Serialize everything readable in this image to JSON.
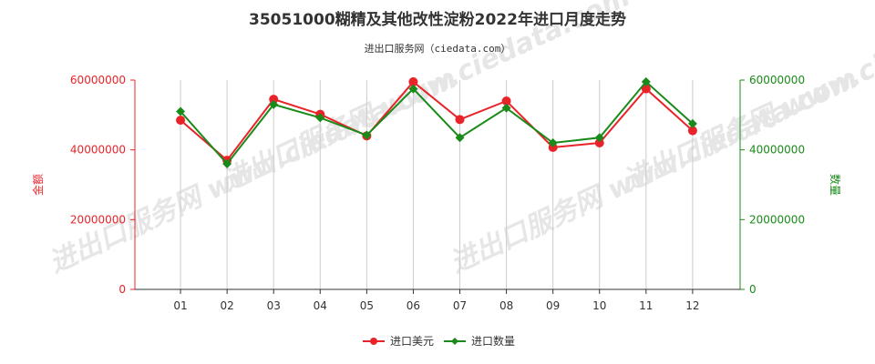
{
  "chart_data": {
    "type": "line",
    "title": "35051000糊精及其他改性淀粉2022年进口月度走势",
    "subtitle": "进出口服务网（ciedata.com）",
    "categories": [
      "01",
      "02",
      "03",
      "04",
      "05",
      "06",
      "07",
      "08",
      "09",
      "10",
      "11",
      "12"
    ],
    "y_left": {
      "label": "金额",
      "ylim": [
        0,
        60000000
      ],
      "ticks": [
        "0",
        "20000000",
        "40000000",
        "60000000"
      ]
    },
    "y_right": {
      "label": "数量",
      "ylim": [
        0,
        60000000
      ],
      "ticks": [
        "0",
        "20000000",
        "40000000",
        "60000000"
      ]
    },
    "series": [
      {
        "name": "进口美元",
        "axis": "left",
        "color": "#e8242a",
        "values": [
          48500000,
          37000000,
          54500000,
          50200000,
          44000000,
          59500000,
          48700000,
          54000000,
          40700000,
          42000000,
          57500000,
          45500000
        ]
      },
      {
        "name": "进口数量",
        "axis": "right",
        "color": "#1a8a1a",
        "values": [
          51000000,
          36000000,
          53000000,
          49200000,
          44200000,
          57500000,
          43500000,
          52000000,
          42000000,
          43500000,
          59500000,
          47500000
        ]
      }
    ],
    "grid": {
      "x": true,
      "y": false
    },
    "legend": "bottom-center",
    "watermark": "进出口服务网 www.ciedata.com"
  },
  "colors": {
    "left_axis": "#e8242a",
    "right_axis": "#1a8a1a",
    "grid": "#cccccc",
    "axis": "#333333"
  }
}
